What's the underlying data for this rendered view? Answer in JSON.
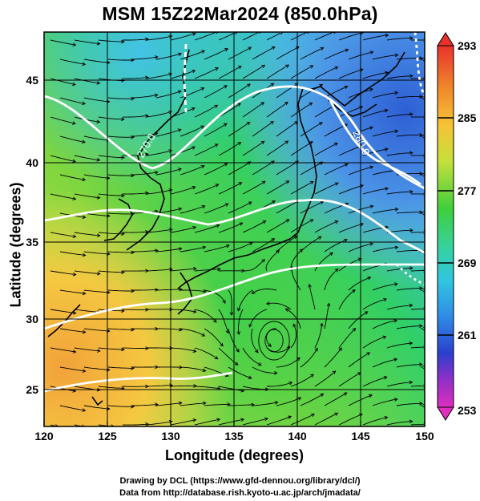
{
  "title": "MSM 15Z22Mar2024 (850.0hPa)",
  "axes": {
    "xlabel": "Longitude (degrees)",
    "ylabel": "Latitude  (degrees)",
    "xticks": [
      "120",
      "125",
      "130",
      "135",
      "140",
      "145",
      "150"
    ],
    "yticks": [
      "25",
      "30",
      "35",
      "40",
      "45"
    ]
  },
  "colorbar": {
    "labels": [
      "293",
      "285",
      "277",
      "269",
      "261",
      "253"
    ]
  },
  "contours": [
    "270.0",
    "280.0"
  ],
  "credits": {
    "line1": "Drawing by DCL (https://www.gfd-dennou.org/library/dcl/)",
    "line2": "Data from http://database.rish.kyoto-u.ac.jp/arch/jmadata/"
  }
}
